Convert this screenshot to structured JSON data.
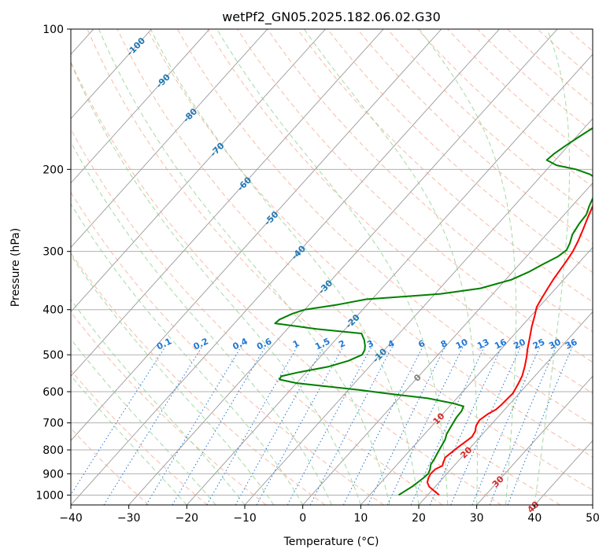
{
  "chart_data": {
    "type": "line",
    "title": "wetPf2_GN05.2025.182.06.02.G30",
    "xlabel": "Temperature (°C)",
    "ylabel": "Pressure (hPa)",
    "xlim": [
      -40,
      50
    ],
    "ylim": [
      1050,
      100
    ],
    "y_scale": "log",
    "x_ticks": [
      "−40",
      "−30",
      "−20",
      "−10",
      "0",
      "10",
      "20",
      "30",
      "40",
      "50"
    ],
    "y_ticks": [
      "100",
      "200",
      "300",
      "400",
      "500",
      "600",
      "700",
      "800",
      "900",
      "1000"
    ],
    "grid": true,
    "series": [
      {
        "color": "#ff0000",
        "role": "temperature",
        "points": [
          [
            22.0,
            1000
          ],
          [
            20.5,
            980
          ],
          [
            19.0,
            960
          ],
          [
            18.0,
            940
          ],
          [
            17.5,
            920
          ],
          [
            17.2,
            900
          ],
          [
            17.3,
            880
          ],
          [
            18.0,
            865
          ],
          [
            17.6,
            850
          ],
          [
            17.2,
            830
          ],
          [
            17.5,
            810
          ],
          [
            17.8,
            790
          ],
          [
            18.2,
            770
          ],
          [
            18.6,
            750
          ],
          [
            18.3,
            730
          ],
          [
            17.6,
            710
          ],
          [
            17.3,
            690
          ],
          [
            17.8,
            670
          ],
          [
            18.5,
            655
          ],
          [
            18.7,
            640
          ],
          [
            18.8,
            620
          ],
          [
            18.9,
            605
          ],
          [
            18.6,
            590
          ],
          [
            18.3,
            575
          ],
          [
            17.8,
            555
          ],
          [
            16.8,
            530
          ],
          [
            15.6,
            505
          ],
          [
            14.5,
            485
          ],
          [
            13.2,
            460
          ],
          [
            11.8,
            435
          ],
          [
            10.6,
            412
          ],
          [
            9.6,
            395
          ],
          [
            9.1,
            378
          ],
          [
            8.6,
            360
          ],
          [
            8.2,
            345
          ],
          [
            7.9,
            330
          ],
          [
            7.6,
            315
          ],
          [
            7.2,
            300
          ],
          [
            6.5,
            285
          ],
          [
            5.6,
            270
          ],
          [
            4.6,
            255
          ],
          [
            3.6,
            240
          ],
          [
            2.6,
            225
          ],
          [
            1.8,
            212
          ],
          [
            1.2,
            202
          ],
          [
            1.1,
            195
          ],
          [
            1.3,
            186
          ],
          [
            1.8,
            175
          ],
          [
            2.2,
            165
          ],
          [
            2.6,
            155
          ],
          [
            3.1,
            146
          ],
          [
            3.8,
            138
          ],
          [
            4.5,
            131
          ],
          [
            5.2,
            124
          ],
          [
            5.9,
            117
          ],
          [
            6.4,
            110
          ],
          [
            7.0,
            104
          ],
          [
            7.5,
            100
          ]
        ]
      },
      {
        "color": "#008000",
        "role": "dewpoint",
        "points": [
          [
            15.0,
            1000
          ],
          [
            15.5,
            980
          ],
          [
            16.0,
            960
          ],
          [
            16.3,
            940
          ],
          [
            16.6,
            920
          ],
          [
            16.8,
            900
          ],
          [
            16.4,
            880
          ],
          [
            15.8,
            860
          ],
          [
            15.6,
            840
          ],
          [
            15.3,
            820
          ],
          [
            15.0,
            800
          ],
          [
            14.7,
            780
          ],
          [
            14.4,
            760
          ],
          [
            13.8,
            740
          ],
          [
            13.5,
            720
          ],
          [
            13.2,
            700
          ],
          [
            12.9,
            680
          ],
          [
            12.8,
            660
          ],
          [
            12.4,
            645
          ],
          [
            10.0,
            635
          ],
          [
            5.0,
            620
          ],
          [
            -3.0,
            605
          ],
          [
            -8.0,
            595
          ],
          [
            -14.0,
            585
          ],
          [
            -20.0,
            575
          ],
          [
            -23.5,
            565
          ],
          [
            -23.7,
            556
          ],
          [
            -21.5,
            546
          ],
          [
            -17.0,
            530
          ],
          [
            -14.5,
            515
          ],
          [
            -13.1,
            500
          ],
          [
            -13.4,
            488
          ],
          [
            -14.0,
            478
          ],
          [
            -15.0,
            465
          ],
          [
            -16.5,
            450
          ],
          [
            -25.0,
            440
          ],
          [
            -33.0,
            428
          ],
          [
            -32.8,
            420
          ],
          [
            -31.5,
            408
          ],
          [
            -30.0,
            400
          ],
          [
            -25.0,
            390
          ],
          [
            -21.0,
            380
          ],
          [
            -15.0,
            375
          ],
          [
            -9.0,
            370
          ],
          [
            -3.0,
            360
          ],
          [
            1.0,
            345
          ],
          [
            2.8,
            332
          ],
          [
            4.0,
            320
          ],
          [
            5.4,
            308
          ],
          [
            5.9,
            298
          ],
          [
            5.4,
            288
          ],
          [
            4.5,
            276
          ],
          [
            4.0,
            262
          ],
          [
            3.8,
            250
          ],
          [
            3.0,
            240
          ],
          [
            2.2,
            228
          ],
          [
            1.4,
            218
          ],
          [
            0.2,
            210
          ],
          [
            -1.8,
            205
          ],
          [
            -5.0,
            200
          ],
          [
            -9.0,
            196
          ],
          [
            -11.5,
            191
          ],
          [
            -11.2,
            185
          ],
          [
            -10.5,
            178
          ],
          [
            -9.5,
            170
          ],
          [
            -8.4,
            162
          ],
          [
            -7.2,
            155
          ],
          [
            -6.0,
            148
          ],
          [
            -5.0,
            141
          ],
          [
            -4.0,
            134
          ],
          [
            -2.8,
            127
          ],
          [
            -1.5,
            120
          ],
          [
            -0.5,
            114
          ],
          [
            0.5,
            108
          ],
          [
            1.4,
            103
          ],
          [
            1.9,
            100
          ]
        ]
      }
    ],
    "isotherm_labels": [
      "-100",
      "-90",
      "-80",
      "-70",
      "-60",
      "-50",
      "-40",
      "-30",
      "-20",
      "-10",
      "0",
      "10",
      "20",
      "30",
      "40"
    ],
    "mixing_ratio_labels": [
      "0.1",
      "0.2",
      "0.4",
      "0.6",
      "1",
      "1.5",
      "2",
      "3",
      "4",
      "6",
      "8",
      "10",
      "13",
      "16",
      "20",
      "25",
      "30",
      "36"
    ],
    "colors": {
      "isotherm": "#999999",
      "dry_adiabat": "#f4a58a",
      "moist_adiabat": "#8fd18f",
      "mixing_ratio": "#1f77d4",
      "label_cold": "#1f77b4",
      "label_zero": "#808080",
      "label_warm": "#d62728",
      "temperature": "#ff0000",
      "dewpoint": "#008000"
    }
  }
}
